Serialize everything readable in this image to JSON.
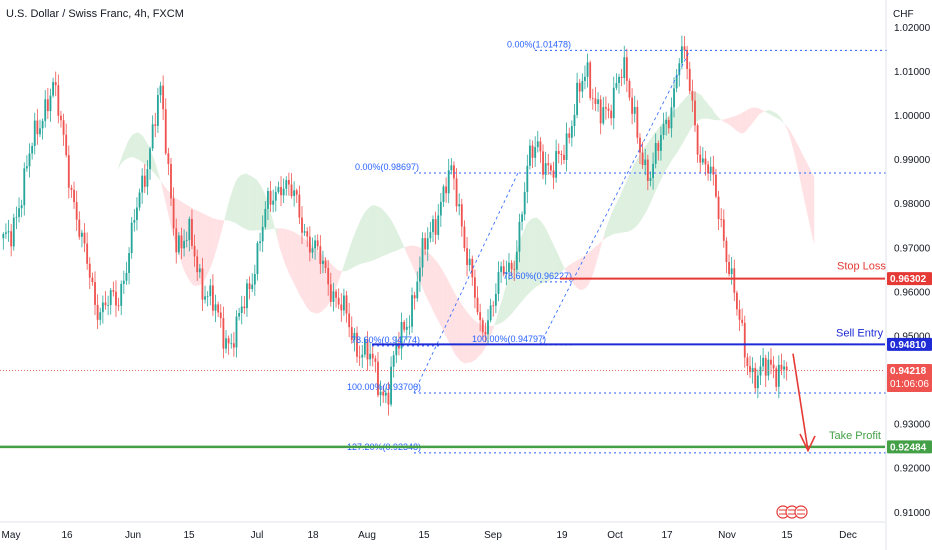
{
  "header": {
    "symbol_title": "U.S. Dollar / Swiss Franc, 4h, FXCM",
    "currency": "CHF"
  },
  "colors": {
    "up": "#26a69a",
    "down": "#ef5350",
    "fib": "#2962ff",
    "stop": "#e53935",
    "entry": "#1e2bd6",
    "tp": "#43a047",
    "cloud_green": "#c8e6c9",
    "cloud_red": "#ffcdd2"
  },
  "labels": {
    "stop_loss": "Stop Loss",
    "sell_entry": "Sell Entry",
    "take_profit": "Take Profit",
    "stop_value": "0.96302",
    "entry_value": "0.94810",
    "tp_value": "0.92484",
    "current_price": "0.94218",
    "countdown": "01:06:06"
  },
  "chart_data": {
    "type": "candlestick",
    "y_axis": {
      "range": [
        0.9078,
        1.0244
      ],
      "ticks": [
        1.02,
        1.01,
        1.0,
        0.99,
        0.98,
        0.97,
        0.96,
        0.95,
        0.94,
        0.93,
        0.92,
        0.91
      ],
      "tick_labels": [
        "1.02000",
        "1.01000",
        "1.00000",
        "0.99000",
        "0.98000",
        "0.97000",
        "0.96000",
        "0.95000",
        "0.94000",
        "0.93000",
        "0.92000",
        "0.91000"
      ]
    },
    "x_axis": {
      "ticks": [
        "May",
        "16",
        "Jun",
        "15",
        "Jul",
        "18",
        "Aug",
        "15",
        "Sep",
        "19",
        "Oct",
        "17",
        "Nov",
        "15",
        "Dec"
      ]
    },
    "price_path": [
      [
        0.97,
        0.972,
        0.98,
        0.986,
        0.992,
        0.998,
        1.004,
        1.006,
        0.998,
        0.99,
        0.98,
        0.97,
        0.965,
        0.958,
        0.956
      ],
      [
        0.957,
        0.958,
        0.965,
        0.972,
        0.98,
        0.988,
        0.998,
        1.005,
        0.99,
        0.975,
        0.97
      ],
      [
        0.972,
        0.968,
        0.962,
        0.958,
        0.954,
        0.951,
        0.949,
        0.952,
        0.958,
        0.965,
        0.972,
        0.978,
        0.982,
        0.986,
        0.983
      ],
      [
        0.98,
        0.976,
        0.972,
        0.968,
        0.965,
        0.962,
        0.958,
        0.954,
        0.95,
        0.948,
        0.946,
        0.942,
        0.938,
        0.938,
        0.945
      ],
      [
        0.95,
        0.956,
        0.962,
        0.968,
        0.974,
        0.979,
        0.983,
        0.986,
        0.98,
        0.97,
        0.96,
        0.95,
        0.955,
        0.96,
        0.963
      ],
      [
        0.965,
        0.97,
        0.98,
        0.99,
        0.995,
        0.99,
        0.985,
        0.99,
        0.995,
        1.0,
        1.005,
        1.01,
        1.005
      ],
      [
        1.0,
        0.998,
        1.008,
        1.014,
        1.002,
        0.995,
        0.99,
        0.987,
        0.992,
        0.998,
        1.005,
        1.014,
        1.01
      ],
      [
        1.0,
        0.99,
        0.987,
        0.982,
        0.975,
        0.965,
        0.955,
        0.948,
        0.943,
        0.94,
        0.942,
        0.944,
        0.943,
        0.9421
      ]
    ],
    "annotations": {
      "fib_levels": [
        {
          "label": "0.00%(1.01478)",
          "value": 1.01478
        },
        {
          "label": "0.00%(0.98697)",
          "value": 0.98697
        },
        {
          "label": "78.60%(0.96227)",
          "value": 0.96227
        },
        {
          "label": "78.60%(0.94774)",
          "value": 0.94774
        },
        {
          "label": "100.00%(0.94797)",
          "value": 0.94797
        },
        {
          "label": "100.00%(0.93706)",
          "value": 0.93706
        },
        {
          "label": "127.20%(0.92348)",
          "value": 0.92348
        }
      ],
      "stop_loss": 0.96302,
      "sell_entry": 0.9481,
      "take_profit": 0.92484,
      "last_price": 0.94218
    }
  }
}
